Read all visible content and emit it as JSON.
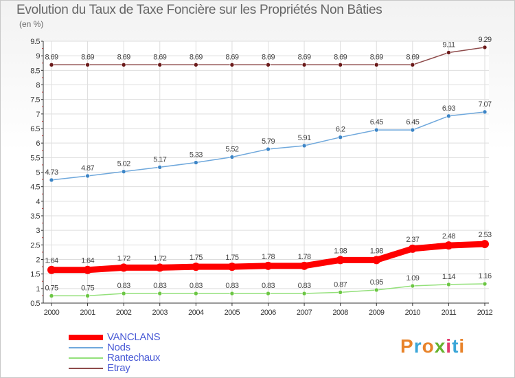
{
  "title": "Evolution du Taux de Taxe Foncière sur les Propriétés Non Bâties",
  "unit_label": "(en %)",
  "logo_text": "Proxiti",
  "logo_colors": [
    "#e8832a",
    "#3aa6d8",
    "#e8832a",
    "#67b32e",
    "#e23a6c",
    "#3aa6d8",
    "#e8832a"
  ],
  "chart_data": {
    "type": "line",
    "title": "Evolution du Taux de Taxe Foncière sur les Propriétés Non Bâties",
    "ylabel": "(en %)",
    "xlabel": "",
    "ylim": [
      0.5,
      9.5
    ],
    "y_ticks": [
      "0.5",
      "1",
      "1.5",
      "2",
      "2.5",
      "3",
      "3.5",
      "4",
      "4.5",
      "5",
      "5.5",
      "6",
      "6.5",
      "7",
      "7.5",
      "8",
      "8.5",
      "9",
      "9.5"
    ],
    "x": [
      "2000",
      "2001",
      "2002",
      "2003",
      "2004",
      "2005",
      "2006",
      "2007",
      "2008",
      "2009",
      "2010",
      "2011",
      "2012"
    ],
    "grid": true,
    "legend_position": "bottom-left",
    "series": [
      {
        "name": "VANCLANS",
        "color": "#ff0000",
        "bold": true,
        "values": [
          1.64,
          1.64,
          1.72,
          1.72,
          1.75,
          1.75,
          1.78,
          1.78,
          1.98,
          1.98,
          2.37,
          2.48,
          2.53
        ],
        "labels": [
          "1.64",
          "1.64",
          "1.72",
          "1.72",
          "1.75",
          "1.75",
          "1.78",
          "1.78",
          "1.98",
          "1.98",
          "2.37",
          "2.48",
          "2.53"
        ]
      },
      {
        "name": "Nods",
        "color": "#6fa8dc",
        "marker": "#3d85c6",
        "bold": false,
        "values": [
          4.73,
          4.87,
          5.02,
          5.17,
          5.33,
          5.52,
          5.79,
          5.91,
          6.2,
          6.45,
          6.45,
          6.93,
          7.07
        ],
        "labels": [
          "4.73",
          "4.87",
          "5.02",
          "5.17",
          "5.33",
          "5.52",
          "5.79",
          "5.91",
          "6.2",
          "6.45",
          "6.45",
          "6.93",
          "7.07"
        ]
      },
      {
        "name": "Rantechaux",
        "color": "#93e07a",
        "marker": "#6cc644",
        "bold": false,
        "values": [
          0.75,
          0.75,
          0.83,
          0.83,
          0.83,
          0.83,
          0.83,
          0.83,
          0.87,
          0.95,
          1.09,
          1.14,
          1.16
        ],
        "labels": [
          "0.75",
          "0.75",
          "0.83",
          "0.83",
          "0.83",
          "0.83",
          "0.83",
          "0.83",
          "0.87",
          "0.95",
          "1.09",
          "1.14",
          "1.16"
        ]
      },
      {
        "name": "Etray",
        "color": "#8e4b4b",
        "marker": "#6b1a1a",
        "bold": false,
        "values": [
          8.69,
          8.69,
          8.69,
          8.69,
          8.69,
          8.69,
          8.69,
          8.69,
          8.69,
          8.69,
          8.69,
          9.11,
          9.29
        ],
        "labels": [
          "8.69",
          "8.69",
          "8.69",
          "8.69",
          "8.69",
          "8.69",
          "8.69",
          "8.69",
          "8.69",
          "8.69",
          "8.69",
          "9.11",
          "9.29"
        ]
      }
    ]
  }
}
